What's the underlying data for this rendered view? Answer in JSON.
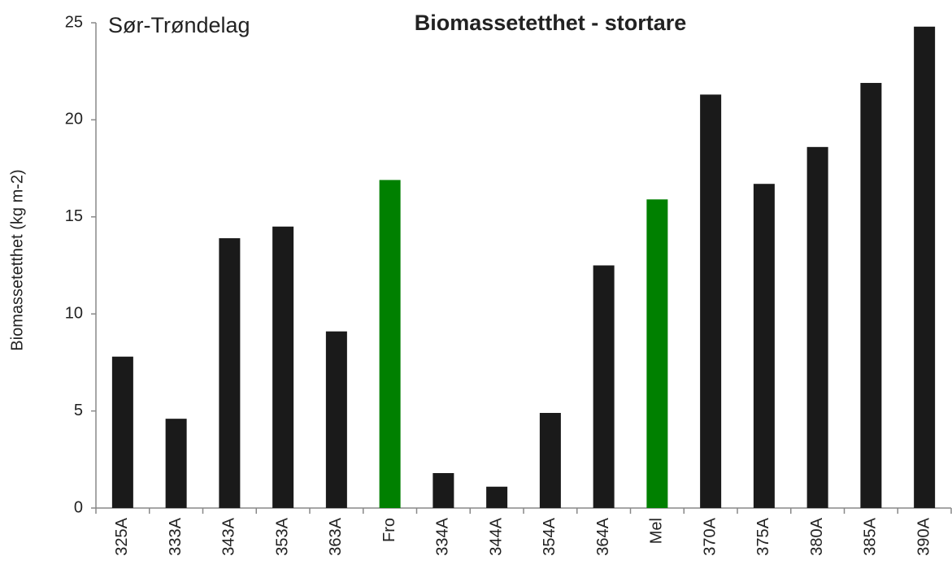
{
  "chart_data": {
    "type": "bar",
    "title": "Biomassetetthet - stortare",
    "annotation": "Sør-Trøndelag",
    "ylabel": "Biomassetetthet  (kg m-2)",
    "categories": [
      "325A",
      "333A",
      "343A",
      "353A",
      "363A",
      "Fro",
      "334A",
      "344A",
      "354A",
      "364A",
      "Mel",
      "370A",
      "375A",
      "380A",
      "385A",
      "390A"
    ],
    "values": [
      7.8,
      4.6,
      13.9,
      14.5,
      9.1,
      16.9,
      1.8,
      1.1,
      4.9,
      12.5,
      15.9,
      21.3,
      16.7,
      18.6,
      21.9,
      24.8
    ],
    "colors": [
      "#1a1a1a",
      "#1a1a1a",
      "#1a1a1a",
      "#1a1a1a",
      "#1a1a1a",
      "#008000",
      "#1a1a1a",
      "#1a1a1a",
      "#1a1a1a",
      "#1a1a1a",
      "#008000",
      "#1a1a1a",
      "#1a1a1a",
      "#1a1a1a",
      "#1a1a1a",
      "#1a1a1a"
    ],
    "ylim": [
      0,
      25
    ],
    "yticks": [
      0,
      5,
      10,
      15,
      20,
      25
    ],
    "grid": false
  }
}
